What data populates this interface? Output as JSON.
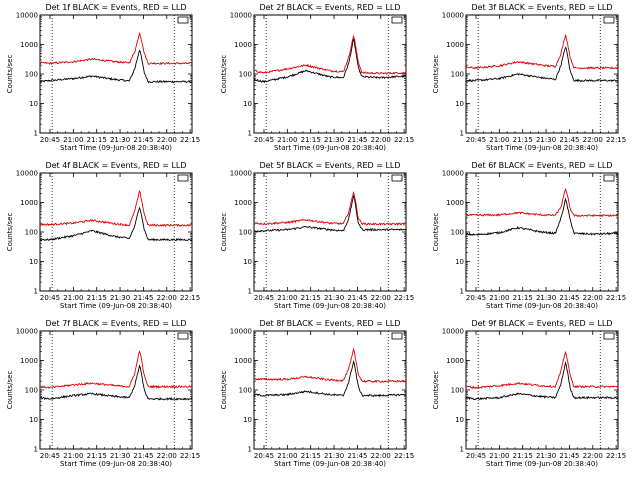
{
  "colors": {
    "events": "#000000",
    "lld": "#dd0000",
    "background": "#ffffff"
  },
  "chart_data": {
    "type": "line",
    "scale_y": "log",
    "ylim": [
      1,
      10000
    ],
    "y_ticks": [
      "1",
      "10",
      "100",
      "1000",
      "10000"
    ],
    "x_ticks": [
      "20:45",
      "21:00",
      "21:15",
      "21:30",
      "21:45",
      "22:00",
      "22:15"
    ],
    "x_tick_hours": [
      20.75,
      21.0,
      21.25,
      21.5,
      21.75,
      22.0,
      22.25
    ],
    "xlim_hours": [
      20.643,
      22.27
    ],
    "dotted_verticals_hours": [
      20.773,
      22.08
    ],
    "ylabel": "Counts/sec",
    "xlabel": "Start Time (09-Jun-08 20:38:40)",
    "peak_time_hours": 21.71,
    "panels": [
      {
        "title": "Det 1f BLACK = Events, RED = LLD",
        "series": [
          {
            "name": "Events",
            "color": "#000000",
            "x": [
              20.643,
              20.75,
              21.0,
              21.2,
              21.45,
              21.6,
              21.66,
              21.71,
              21.76,
              21.8,
              22.0,
              22.27
            ],
            "y": [
              55,
              60,
              70,
              85,
              65,
              58,
              160,
              700,
              110,
              55,
              55,
              55
            ]
          },
          {
            "name": "LLD",
            "color": "#dd0000",
            "x": [
              20.643,
              20.75,
              21.0,
              21.2,
              21.45,
              21.6,
              21.66,
              21.71,
              21.76,
              21.8,
              22.0,
              22.27
            ],
            "y": [
              240,
              230,
              260,
              320,
              260,
              240,
              600,
              2600,
              500,
              230,
              230,
              230
            ]
          }
        ]
      },
      {
        "title": "Det 2f BLACK = Events, RED = LLD",
        "series": [
          {
            "name": "Events",
            "color": "#000000",
            "x": [
              20.643,
              20.75,
              21.0,
              21.2,
              21.45,
              21.6,
              21.66,
              21.71,
              21.76,
              21.8,
              22.0,
              22.27
            ],
            "y": [
              65,
              55,
              80,
              130,
              80,
              75,
              250,
              1600,
              160,
              80,
              75,
              85
            ]
          },
          {
            "name": "LLD",
            "color": "#dd0000",
            "x": [
              20.643,
              20.75,
              21.0,
              21.2,
              21.45,
              21.6,
              21.66,
              21.71,
              21.76,
              21.8,
              22.0,
              22.27
            ],
            "y": [
              130,
              110,
              150,
              200,
              130,
              120,
              400,
              2100,
              250,
              110,
              105,
              110
            ]
          }
        ]
      },
      {
        "title": "Det 3f BLACK = Events, RED = LLD",
        "series": [
          {
            "name": "Events",
            "color": "#000000",
            "x": [
              20.643,
              20.75,
              21.0,
              21.2,
              21.45,
              21.6,
              21.66,
              21.71,
              21.76,
              21.8,
              22.0,
              22.27
            ],
            "y": [
              60,
              60,
              70,
              100,
              75,
              65,
              200,
              900,
              120,
              60,
              60,
              60
            ]
          },
          {
            "name": "LLD",
            "color": "#dd0000",
            "x": [
              20.643,
              20.75,
              21.0,
              21.2,
              21.45,
              21.6,
              21.66,
              21.71,
              21.76,
              21.8,
              22.0,
              22.27
            ],
            "y": [
              170,
              160,
              190,
              260,
              200,
              180,
              500,
              2200,
              350,
              160,
              160,
              160
            ]
          }
        ]
      },
      {
        "title": "Det 4f BLACK = Events, RED = LLD",
        "series": [
          {
            "name": "Events",
            "color": "#000000",
            "x": [
              20.643,
              20.75,
              21.0,
              21.2,
              21.45,
              21.6,
              21.66,
              21.71,
              21.76,
              21.8,
              22.0,
              22.27
            ],
            "y": [
              55,
              55,
              75,
              110,
              70,
              60,
              170,
              750,
              120,
              55,
              55,
              55
            ]
          },
          {
            "name": "LLD",
            "color": "#dd0000",
            "x": [
              20.643,
              20.75,
              21.0,
              21.2,
              21.45,
              21.6,
              21.66,
              21.71,
              21.76,
              21.8,
              22.0,
              22.27
            ],
            "y": [
              180,
              180,
              200,
              250,
              190,
              170,
              550,
              2500,
              400,
              170,
              170,
              170
            ]
          }
        ]
      },
      {
        "title": "Det 5f BLACK = Events, RED = LLD",
        "series": [
          {
            "name": "Events",
            "color": "#000000",
            "x": [
              20.643,
              20.75,
              21.0,
              21.2,
              21.45,
              21.6,
              21.66,
              21.71,
              21.76,
              21.8,
              22.0,
              22.27
            ],
            "y": [
              110,
              110,
              120,
              150,
              120,
              110,
              300,
              1800,
              200,
              120,
              120,
              120
            ]
          },
          {
            "name": "LLD",
            "color": "#dd0000",
            "x": [
              20.643,
              20.75,
              21.0,
              21.2,
              21.45,
              21.6,
              21.66,
              21.71,
              21.76,
              21.8,
              22.0,
              22.27
            ],
            "y": [
              200,
              190,
              210,
              260,
              200,
              190,
              500,
              2400,
              300,
              190,
              185,
              190
            ]
          }
        ]
      },
      {
        "title": "Det 6f BLACK = Events, RED = LLD",
        "series": [
          {
            "name": "Events",
            "color": "#000000",
            "x": [
              20.643,
              20.75,
              21.0,
              21.2,
              21.45,
              21.6,
              21.66,
              21.71,
              21.76,
              21.8,
              22.0,
              22.27
            ],
            "y": [
              85,
              80,
              95,
              140,
              100,
              90,
              300,
              1300,
              250,
              90,
              85,
              90
            ]
          },
          {
            "name": "LLD",
            "color": "#dd0000",
            "x": [
              20.643,
              20.75,
              21.0,
              21.2,
              21.45,
              21.6,
              21.66,
              21.71,
              21.76,
              21.8,
              22.0,
              22.27
            ],
            "y": [
              380,
              370,
              380,
              450,
              380,
              370,
              700,
              3000,
              600,
              360,
              360,
              360
            ]
          }
        ]
      },
      {
        "title": "Det 7f BLACK = Events, RED = LLD",
        "series": [
          {
            "name": "Events",
            "color": "#000000",
            "x": [
              20.643,
              20.75,
              21.0,
              21.2,
              21.45,
              21.6,
              21.66,
              21.71,
              21.76,
              21.8,
              22.0,
              22.27
            ],
            "y": [
              55,
              50,
              65,
              75,
              60,
              55,
              150,
              700,
              100,
              50,
              50,
              50
            ]
          },
          {
            "name": "LLD",
            "color": "#dd0000",
            "x": [
              20.643,
              20.75,
              21.0,
              21.2,
              21.45,
              21.6,
              21.66,
              21.71,
              21.76,
              21.8,
              22.0,
              22.27
            ],
            "y": [
              130,
              120,
              150,
              170,
              140,
              130,
              400,
              2300,
              300,
              130,
              130,
              130
            ]
          }
        ]
      },
      {
        "title": "Det 8f BLACK = Events, RED = LLD",
        "series": [
          {
            "name": "Events",
            "color": "#000000",
            "x": [
              20.643,
              20.75,
              21.0,
              21.2,
              21.45,
              21.6,
              21.66,
              21.71,
              21.76,
              21.8,
              22.0,
              22.27
            ],
            "y": [
              70,
              65,
              70,
              90,
              70,
              65,
              200,
              1000,
              130,
              65,
              65,
              70
            ]
          },
          {
            "name": "LLD",
            "color": "#dd0000",
            "x": [
              20.643,
              20.75,
              21.0,
              21.2,
              21.45,
              21.6,
              21.66,
              21.71,
              21.76,
              21.8,
              22.0,
              22.27
            ],
            "y": [
              240,
              230,
              230,
              280,
              220,
              210,
              550,
              2400,
              350,
              200,
              195,
              200
            ]
          }
        ]
      },
      {
        "title": "Det 9f BLACK = Events, RED = LLD",
        "series": [
          {
            "name": "Events",
            "color": "#000000",
            "x": [
              20.643,
              20.75,
              21.0,
              21.2,
              21.45,
              21.6,
              21.66,
              21.71,
              21.76,
              21.8,
              22.0,
              22.27
            ],
            "y": [
              55,
              50,
              55,
              75,
              60,
              55,
              160,
              900,
              110,
              55,
              55,
              55
            ]
          },
          {
            "name": "LLD",
            "color": "#dd0000",
            "x": [
              20.643,
              20.75,
              21.0,
              21.2,
              21.45,
              21.6,
              21.66,
              21.71,
              21.76,
              21.8,
              22.0,
              22.27
            ],
            "y": [
              130,
              120,
              140,
              170,
              140,
              130,
              450,
              2100,
              300,
              130,
              130,
              130
            ]
          }
        ]
      }
    ]
  }
}
